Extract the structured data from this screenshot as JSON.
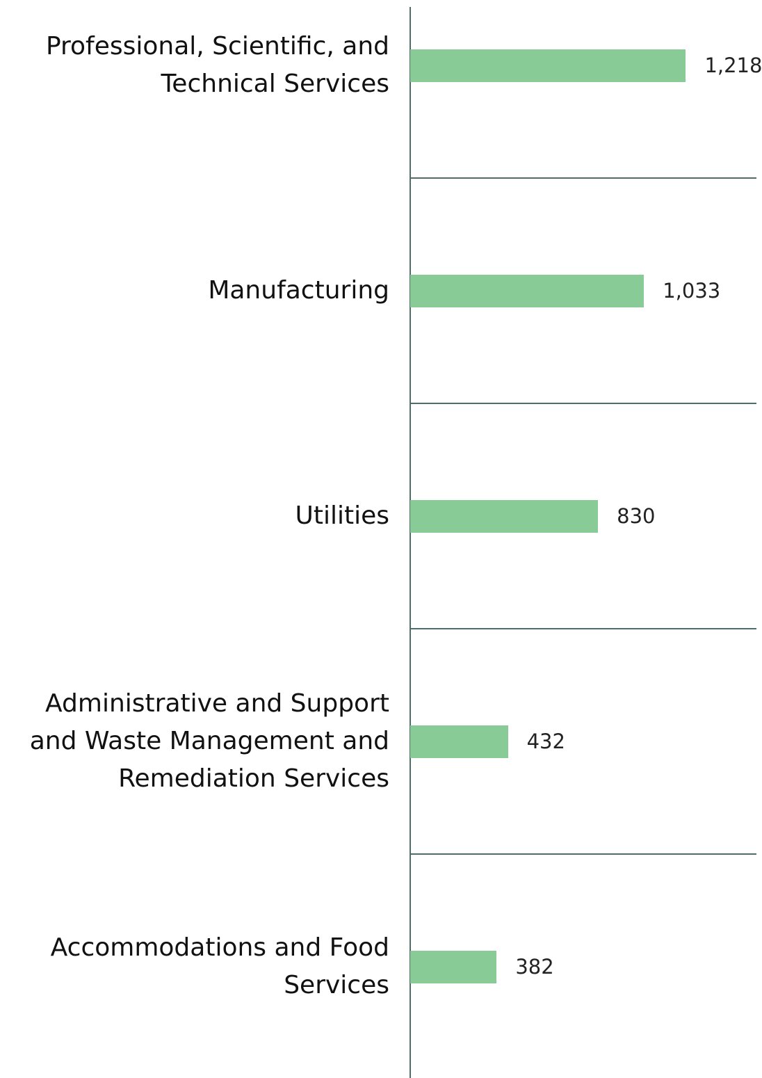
{
  "chart_data": {
    "type": "barh",
    "categories": [
      "Professional, Scientific, and Technical Services",
      "Manufacturing",
      "Utilities",
      "Administrative and Support and Waste Management and Remediation Services",
      "Accommodations and Food Services"
    ],
    "values": [
      1218,
      1033,
      830,
      432,
      382
    ],
    "value_labels": [
      "1,218",
      "1,033",
      "830",
      "432",
      "382"
    ],
    "color": "#88cb96",
    "xlim": [
      0,
      1530
    ]
  }
}
